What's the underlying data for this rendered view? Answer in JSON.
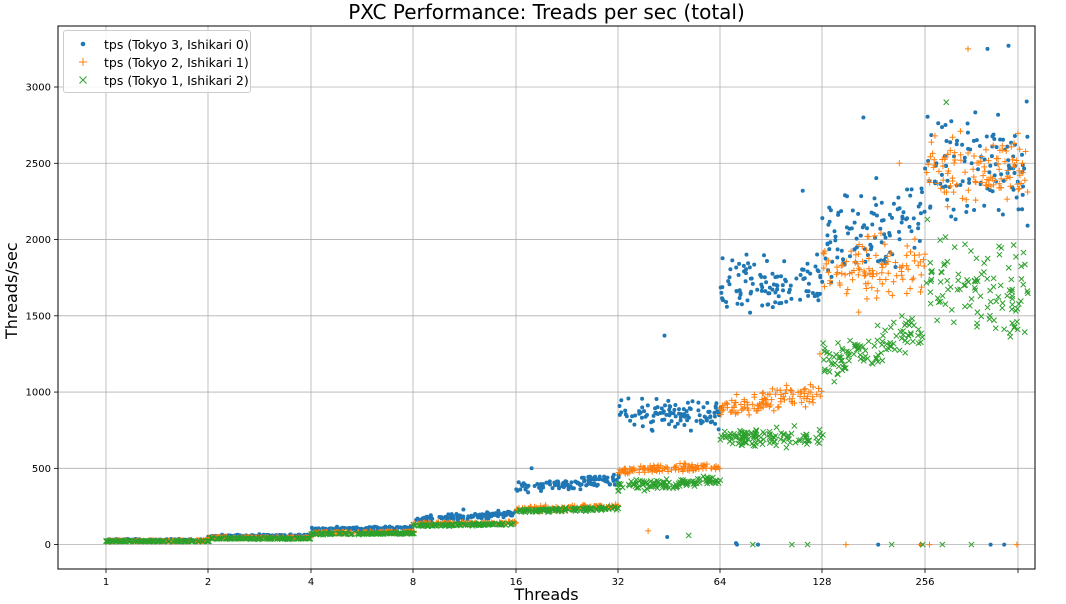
{
  "chart_data": {
    "type": "scatter",
    "title": "PXC Performance: Treads per sec (total)",
    "xlabel": "Threads",
    "ylabel": "Threads/sec",
    "x_ticks": [
      "1",
      "2",
      "4",
      "8",
      "16",
      "32",
      "64",
      "128",
      "256",
      ""
    ],
    "y_ticks": [
      0,
      500,
      1000,
      1500,
      2000,
      2500,
      3000
    ],
    "ylim": [
      -160,
      3400
    ],
    "grid": true,
    "legend_position": "top-left",
    "series": [
      {
        "name": "tps (Tokyo 3, Ishikari 0)",
        "marker": "dot",
        "color": "#1f77b4",
        "bands": [
          {
            "threads": "1",
            "center": 30,
            "spread": 10,
            "drift": 0,
            "outliers": []
          },
          {
            "threads": "2",
            "center": 58,
            "spread": 12,
            "drift": 5,
            "outliers": []
          },
          {
            "threads": "4",
            "center": 105,
            "spread": 18,
            "drift": 10,
            "outliers": []
          },
          {
            "threads": "8",
            "center": 185,
            "spread": 30,
            "drift": 40,
            "outliers": [
              230
            ]
          },
          {
            "threads": "16",
            "center": 400,
            "spread": 55,
            "drift": 60,
            "outliers": [
              500
            ]
          },
          {
            "threads": "32",
            "center": 850,
            "spread": 150,
            "drift": 0,
            "outliers": [
              1370,
              50
            ]
          },
          {
            "threads": "64",
            "center": 1700,
            "spread": 300,
            "drift": 0,
            "outliers": [
              2320,
              0,
              0,
              10
            ]
          },
          {
            "threads": "128",
            "center": 2050,
            "spread": 400,
            "drift": 200,
            "outliers": [
              2800,
              0,
              0
            ]
          },
          {
            "threads": "256",
            "center": 2500,
            "spread": 500,
            "drift": 0,
            "outliers": [
              3270,
              3250,
              0,
              0
            ]
          }
        ]
      },
      {
        "name": "tps (Tokyo 2, Ishikari 1)",
        "marker": "plus",
        "color": "#ff7f0e",
        "bands": [
          {
            "threads": "1",
            "center": 25,
            "spread": 6,
            "drift": 0,
            "outliers": []
          },
          {
            "threads": "2",
            "center": 45,
            "spread": 8,
            "drift": 0,
            "outliers": []
          },
          {
            "threads": "4",
            "center": 80,
            "spread": 10,
            "drift": 5,
            "outliers": []
          },
          {
            "threads": "8",
            "center": 140,
            "spread": 14,
            "drift": 10,
            "outliers": []
          },
          {
            "threads": "16",
            "center": 240,
            "spread": 25,
            "drift": 20,
            "outliers": []
          },
          {
            "threads": "32",
            "center": 500,
            "spread": 40,
            "drift": 20,
            "outliers": [
              90
            ]
          },
          {
            "threads": "64",
            "center": 950,
            "spread": 110,
            "drift": 100,
            "outliers": [
              1250
            ]
          },
          {
            "threads": "128",
            "center": 1800,
            "spread": 300,
            "drift": 0,
            "outliers": [
              2500,
              0,
              0
            ]
          },
          {
            "threads": "256",
            "center": 2450,
            "spread": 300,
            "drift": 0,
            "outliers": [
              3250,
              0,
              0
            ]
          }
        ]
      },
      {
        "name": "tps (Tokyo 1, Ishikari 2)",
        "marker": "x",
        "color": "#2ca02c",
        "bands": [
          {
            "threads": "1",
            "center": 22,
            "spread": 5,
            "drift": 0,
            "outliers": []
          },
          {
            "threads": "2",
            "center": 40,
            "spread": 6,
            "drift": 0,
            "outliers": []
          },
          {
            "threads": "4",
            "center": 72,
            "spread": 8,
            "drift": 5,
            "outliers": []
          },
          {
            "threads": "8",
            "center": 130,
            "spread": 12,
            "drift": 10,
            "outliers": []
          },
          {
            "threads": "16",
            "center": 230,
            "spread": 20,
            "drift": 20,
            "outliers": []
          },
          {
            "threads": "32",
            "center": 400,
            "spread": 50,
            "drift": 30,
            "outliers": [
              60
            ]
          },
          {
            "threads": "64",
            "center": 700,
            "spread": 90,
            "drift": 0,
            "outliers": [
              0,
              0,
              0
            ]
          },
          {
            "threads": "128",
            "center": 1300,
            "spread": 200,
            "drift": 250,
            "outliers": [
              0,
              0
            ]
          },
          {
            "threads": "256",
            "center": 1700,
            "spread": 500,
            "drift": -200,
            "outliers": [
              2900,
              0,
              0
            ]
          }
        ]
      }
    ]
  }
}
